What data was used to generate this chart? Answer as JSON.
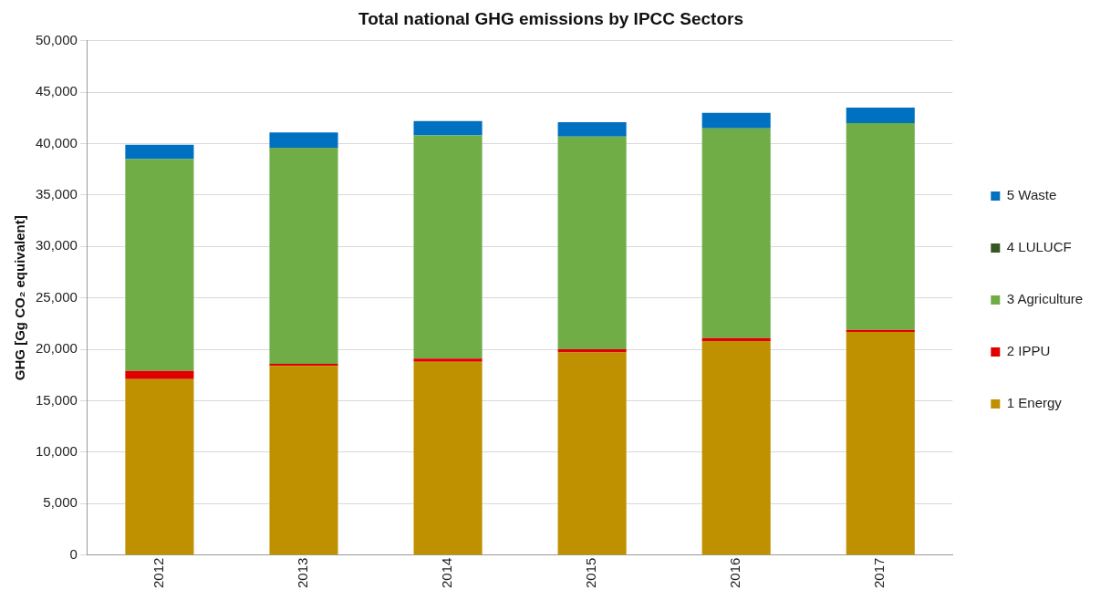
{
  "chart_data": {
    "type": "bar",
    "stacked": true,
    "title": "Total national GHG emissions by IPCC Sectors",
    "ylabel": "GHG [Gg CO₂ equivalent]",
    "categories": [
      "2012",
      "2013",
      "2014",
      "2015",
      "2016",
      "2017"
    ],
    "series": [
      {
        "name": "1 Energy",
        "color": "#bf9000",
        "values": [
          17100,
          18400,
          18800,
          19700,
          20800,
          21700
        ]
      },
      {
        "name": "2 IPPU",
        "color": "#e00000",
        "values": [
          800,
          200,
          300,
          300,
          300,
          200
        ]
      },
      {
        "name": "3 Agriculture",
        "color": "#70ad47",
        "values": [
          20600,
          21000,
          21700,
          20700,
          20400,
          20100
        ]
      },
      {
        "name": "4 LULUCF",
        "color": "#375623",
        "values": [
          0,
          0,
          0,
          0,
          0,
          0
        ]
      },
      {
        "name": "5 Waste",
        "color": "#0070c0",
        "values": [
          1400,
          1500,
          1400,
          1400,
          1500,
          1500
        ]
      }
    ],
    "ylim": [
      0,
      50000
    ],
    "yticks": [
      {
        "value": 0,
        "label": "0"
      },
      {
        "value": 5000,
        "label": "5,000"
      },
      {
        "value": 10000,
        "label": "10,000"
      },
      {
        "value": 15000,
        "label": "15,000"
      },
      {
        "value": 20000,
        "label": "20,000"
      },
      {
        "value": 25000,
        "label": "25,000"
      },
      {
        "value": 30000,
        "label": "30,000"
      },
      {
        "value": 35000,
        "label": "35,000"
      },
      {
        "value": 40000,
        "label": "40,000"
      },
      {
        "value": 45000,
        "label": "45,000"
      },
      {
        "value": 50000,
        "label": "50,000"
      }
    ],
    "grid": "y",
    "legend": "right"
  }
}
